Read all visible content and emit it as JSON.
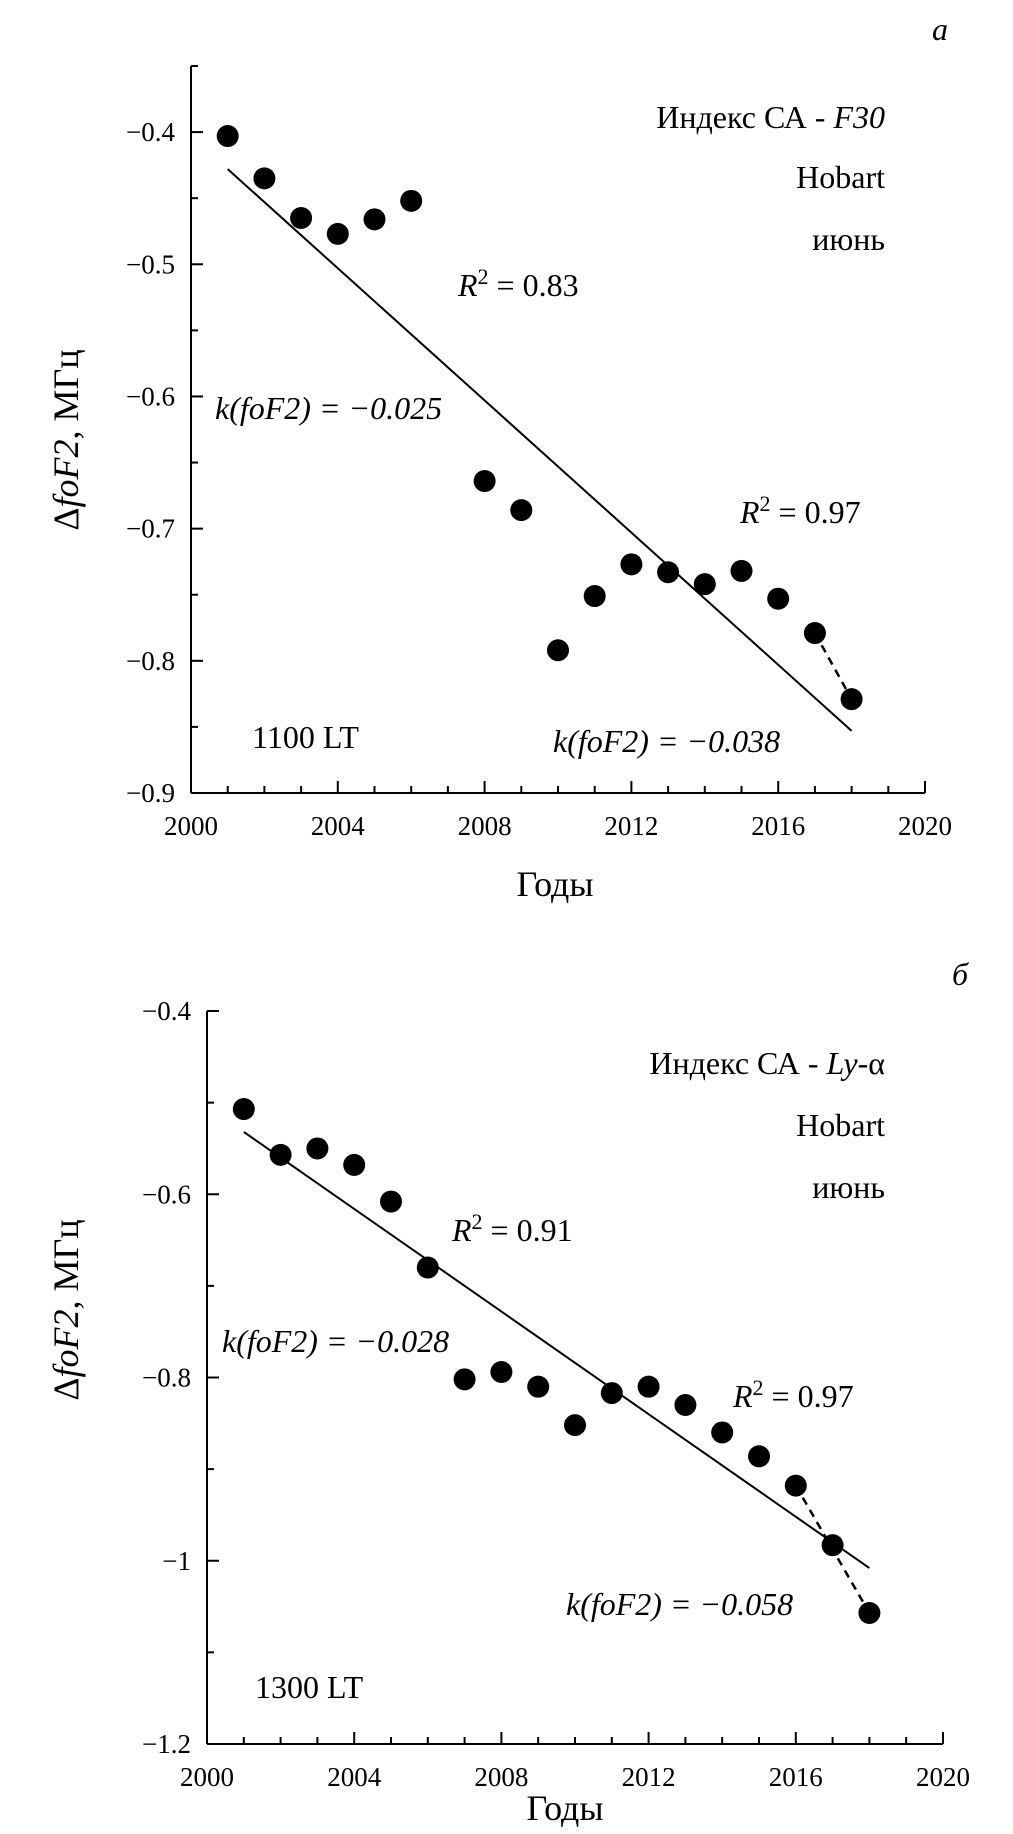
{
  "chart_data": [
    {
      "type": "scatter",
      "panel_letter": "а",
      "xlabel": "Годы",
      "ylabel_delta": "Δ",
      "ylabel_var": "foF2",
      "ylabel_unit": ", МГц",
      "xlim": [
        2000,
        2020
      ],
      "ylim": [
        -0.9,
        -0.35
      ],
      "xticks": [
        2000,
        2004,
        2008,
        2012,
        2016,
        2020
      ],
      "xticks_minor": [
        2001,
        2002,
        2003,
        2005,
        2006,
        2007,
        2009,
        2010,
        2011,
        2013,
        2014,
        2015,
        2017,
        2018,
        2019
      ],
      "yticks": [
        -0.4,
        -0.5,
        -0.6,
        -0.7,
        -0.8,
        -0.9
      ],
      "ytick_labels": [
        "−0.4",
        "−0.5",
        "−0.6",
        "−0.7",
        "−0.8",
        "−0.9"
      ],
      "yticks_minor": [
        -0.35,
        -0.45,
        -0.55,
        -0.65,
        -0.75,
        -0.85
      ],
      "points": {
        "x": [
          2001,
          2002,
          2003,
          2004,
          2005,
          2006,
          2008,
          2009,
          2010,
          2011,
          2012,
          2013,
          2014,
          2015,
          2016,
          2017,
          2018
        ],
        "y": [
          -0.403,
          -0.435,
          -0.465,
          -0.477,
          -0.466,
          -0.452,
          -0.664,
          -0.686,
          -0.792,
          -0.751,
          -0.727,
          -0.733,
          -0.742,
          -0.732,
          -0.753,
          -0.779,
          -0.829
        ]
      },
      "fit_line": {
        "x": [
          2001,
          2018
        ],
        "y": [
          -0.428,
          -0.853
        ]
      },
      "dashed_line": {
        "x": [
          2017,
          2018
        ],
        "y": [
          -0.779,
          -0.829
        ]
      },
      "labels": {
        "index_prefix": "Индекс СА - ",
        "index_name": "F30",
        "station": "Hobart",
        "month": "июнь",
        "r2_main": " = 0.83",
        "k_main": "k(foF2) = −0.025",
        "r2_end": " = 0.97",
        "k_end": "k(foF2) = −0.038",
        "time": "1100 LT"
      }
    },
    {
      "type": "scatter",
      "panel_letter": "б",
      "xlabel": "Годы",
      "ylabel_delta": "Δ",
      "ylabel_var": "foF2",
      "ylabel_unit": ", МГц",
      "xlim": [
        2000,
        2020
      ],
      "ylim": [
        -1.2,
        -0.4
      ],
      "xticks": [
        2000,
        2004,
        2008,
        2012,
        2016,
        2020
      ],
      "xticks_minor": [
        2001,
        2002,
        2003,
        2005,
        2006,
        2007,
        2009,
        2010,
        2011,
        2013,
        2014,
        2015,
        2017,
        2018,
        2019
      ],
      "yticks": [
        -0.4,
        -0.6,
        -0.8,
        -1.0,
        -1.2
      ],
      "ytick_labels": [
        "−0.4",
        "−0.6",
        "−0.8",
        "−1",
        "−1.2"
      ],
      "yticks_minor": [
        -0.5,
        -0.7,
        -0.9,
        -1.1
      ],
      "points": {
        "x": [
          2001,
          2002,
          2003,
          2004,
          2005,
          2006,
          2007,
          2008,
          2009,
          2010,
          2011,
          2012,
          2013,
          2014,
          2015,
          2016,
          2017,
          2018
        ],
        "y": [
          -0.507,
          -0.557,
          -0.55,
          -0.568,
          -0.608,
          -0.68,
          -0.802,
          -0.794,
          -0.81,
          -0.852,
          -0.817,
          -0.81,
          -0.83,
          -0.86,
          -0.886,
          -0.918,
          -0.983,
          -1.057
        ]
      },
      "fit_line": {
        "x": [
          2001,
          2018
        ],
        "y": [
          -0.532,
          -1.008
        ]
      },
      "dashed_line": {
        "x": [
          2016,
          2018
        ],
        "y": [
          -0.918,
          -1.057
        ]
      },
      "labels": {
        "index_prefix": "Индекс СА - ",
        "index_name": "Ly",
        "index_suffix": "-α",
        "station": "Hobart",
        "month": "июнь",
        "r2_main": " = 0.91",
        "k_main": "k(foF2) = −0.028",
        "r2_end": " = 0.97",
        "k_end": "k(foF2) = −0.058",
        "time": "1300 LT"
      }
    }
  ]
}
